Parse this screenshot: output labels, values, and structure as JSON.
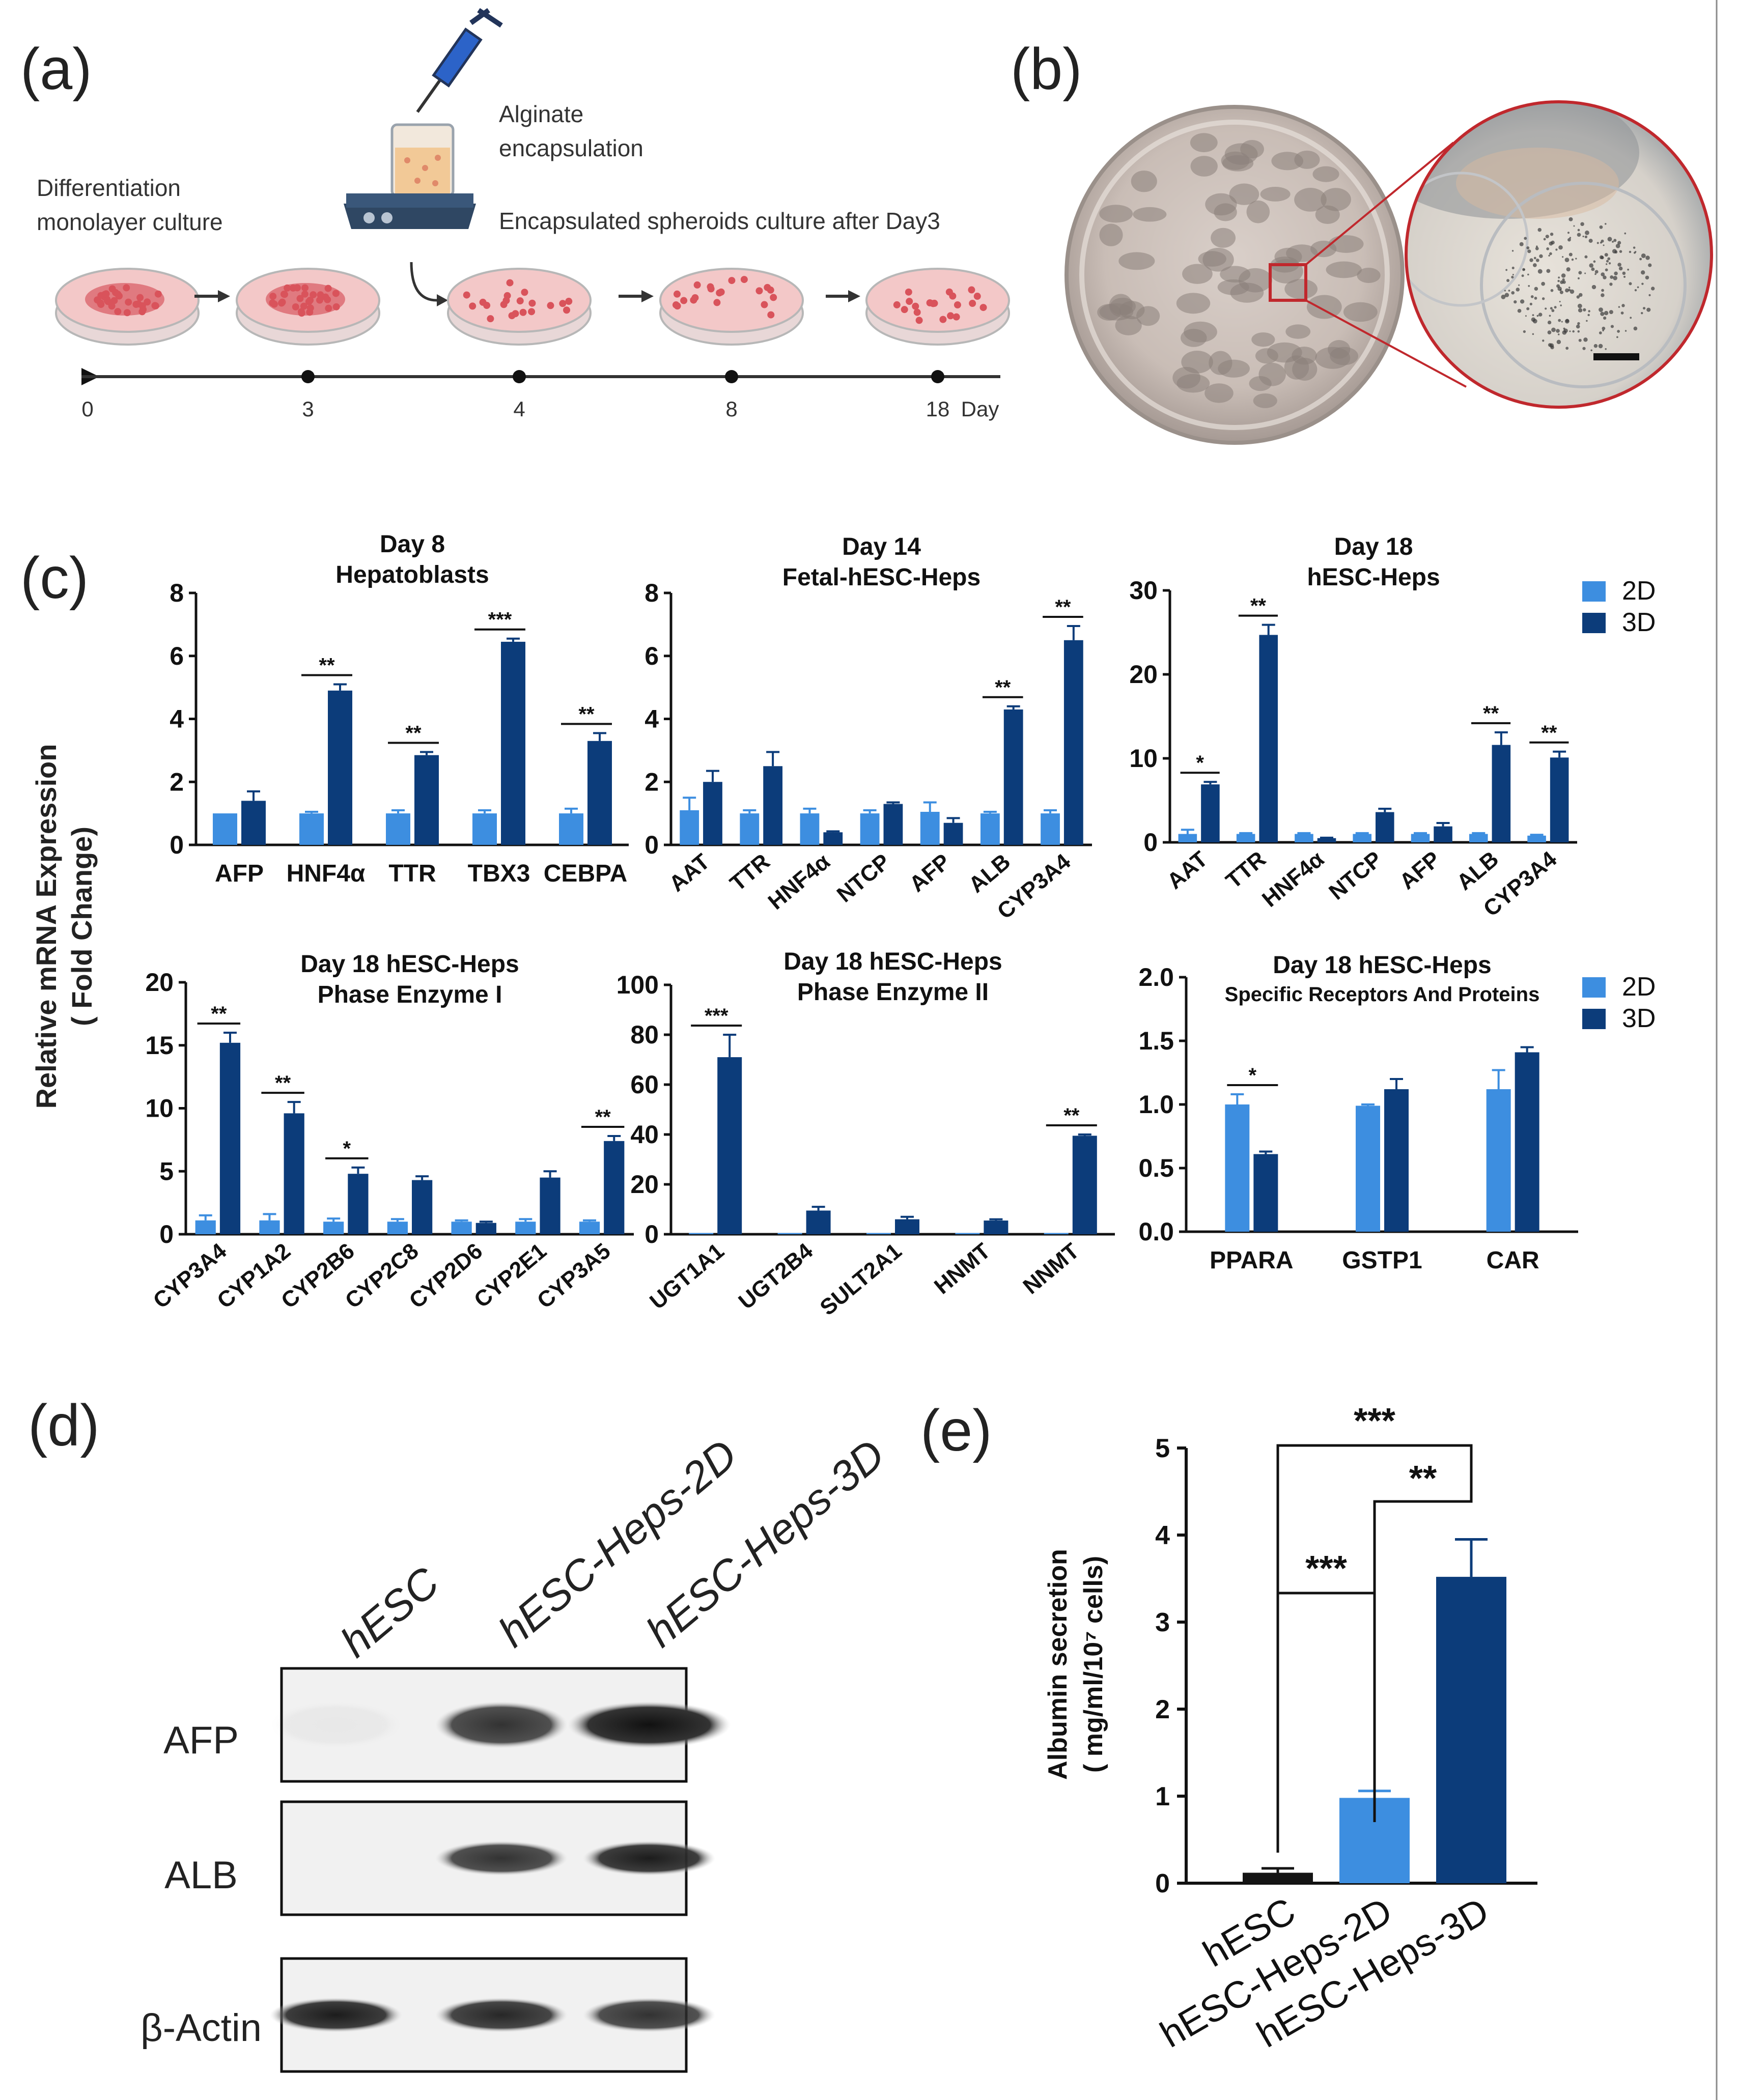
{
  "panel_letters": {
    "a": "(a)",
    "b": "(b)",
    "c": "(c)",
    "d": "(d)",
    "e": "(e)"
  },
  "colors": {
    "d2": "#3d8ee0",
    "d3": "#0c3c7a",
    "dish": "#f3c8c8",
    "dish_rim": "#b7b7b7",
    "cell": "#d9535b",
    "stirrer": "#2f4763",
    "scale_bar": "#111111"
  },
  "panel_a": {
    "label_mono": [
      "Differentiation",
      "monolayer culture"
    ],
    "label_alginate": [
      "Alginate",
      "encapsulation"
    ],
    "label_spheroids": "Encapsulated spheroids culture after Day3",
    "timeline": {
      "ticks": [
        "0",
        "3",
        "4",
        "8",
        "18"
      ],
      "unit": "Day"
    },
    "stages": [
      {
        "type": "monolayer",
        "day": "0"
      },
      {
        "type": "monolayer",
        "day": "3"
      },
      {
        "type": "spheroid",
        "day": "4"
      },
      {
        "type": "spheroid",
        "day": "8"
      },
      {
        "type": "spheroid",
        "day": "18"
      }
    ]
  },
  "panel_b": {
    "description_icon": "culture-plate-photo"
  },
  "panel_c": {
    "ylabel": [
      "Relative mRNA Expression",
      "( Fold Change)"
    ]
  },
  "panel_d": {
    "lanes": [
      "hESC",
      "hESC-Heps-2D",
      "hESC-Heps-3D"
    ],
    "blots": [
      {
        "label": "AFP",
        "intensity": [
          0.04,
          0.85,
          1.0
        ]
      },
      {
        "label": "ALB",
        "intensity": [
          0.0,
          0.85,
          0.95
        ]
      },
      {
        "label": "β-Actin",
        "intensity": [
          0.95,
          0.9,
          0.85
        ]
      }
    ]
  },
  "chart_data": [
    {
      "id": "c1",
      "type": "bar",
      "title": [
        "Day 8",
        "Hepatoblasts"
      ],
      "categories": [
        "AFP",
        "HNF4α",
        "TTR",
        "TBX3",
        "CEBPA"
      ],
      "series": [
        {
          "name": "2D",
          "values": [
            1,
            1,
            1,
            1,
            1
          ],
          "errors": [
            0,
            0.05,
            0.1,
            0.1,
            0.15
          ]
        },
        {
          "name": "3D",
          "values": [
            1.4,
            4.9,
            2.85,
            6.45,
            3.3
          ],
          "errors": [
            0.3,
            0.2,
            0.1,
            0.1,
            0.25
          ]
        }
      ],
      "ylim": [
        0,
        8
      ],
      "yticks": [
        0,
        2,
        4,
        6,
        8
      ],
      "rotate": false,
      "significance": [
        {
          "index": 1,
          "label": "**"
        },
        {
          "index": 2,
          "label": "**"
        },
        {
          "index": 3,
          "label": "***"
        },
        {
          "index": 4,
          "label": "**"
        }
      ]
    },
    {
      "id": "c2",
      "type": "bar",
      "title": [
        "Day 14",
        "Fetal-hESC-Heps"
      ],
      "categories": [
        "AAT",
        "TTR",
        "HNF4α",
        "NTCP",
        "AFP",
        "ALB",
        "CYP3A4"
      ],
      "series": [
        {
          "name": "2D",
          "values": [
            1.1,
            1,
            1,
            1,
            1.05,
            1,
            1
          ],
          "errors": [
            0.4,
            0.1,
            0.15,
            0.1,
            0.3,
            0.05,
            0.1
          ]
        },
        {
          "name": "3D",
          "values": [
            2,
            2.5,
            0.4,
            1.3,
            0.7,
            4.3,
            6.5
          ],
          "errors": [
            0.35,
            0.45,
            0.03,
            0.05,
            0.15,
            0.1,
            0.45
          ]
        }
      ],
      "ylim": [
        0,
        8
      ],
      "yticks": [
        0,
        2,
        4,
        6,
        8
      ],
      "rotate": true,
      "significance": [
        {
          "index": 5,
          "label": "**"
        },
        {
          "index": 6,
          "label": "**"
        }
      ]
    },
    {
      "id": "c3",
      "type": "bar",
      "title": [
        "Day 18",
        "hESC-Heps"
      ],
      "categories": [
        "AAT",
        "TTR",
        "HNF4α",
        "NTCP",
        "AFP",
        "ALB",
        "CYP3A4"
      ],
      "series": [
        {
          "name": "2D",
          "values": [
            1,
            1,
            1,
            1,
            1,
            1,
            0.8
          ],
          "errors": [
            0.5,
            0.1,
            0.1,
            0.1,
            0.1,
            0.1,
            0.1
          ]
        },
        {
          "name": "3D",
          "values": [
            6.9,
            24.7,
            0.5,
            3.6,
            1.9,
            11.6,
            10.1
          ],
          "errors": [
            0.3,
            1.2,
            0.05,
            0.4,
            0.4,
            1.5,
            0.7
          ]
        }
      ],
      "ylim": [
        0,
        30
      ],
      "yticks": [
        0,
        10,
        20,
        30
      ],
      "rotate": true,
      "significance": [
        {
          "index": 0,
          "label": "*"
        },
        {
          "index": 1,
          "label": "**"
        },
        {
          "index": 5,
          "label": "**"
        },
        {
          "index": 6,
          "label": "**"
        }
      ],
      "legend": [
        "2D",
        "3D"
      ]
    },
    {
      "id": "c4",
      "type": "bar",
      "title": [
        "Day 18  hESC-Heps",
        "Phase Enzyme I"
      ],
      "categories": [
        "CYP3A4",
        "CYP1A2",
        "CYP2B6",
        "CYP2C8",
        "CYP2D6",
        "CYP2E1",
        "CYP3A5"
      ],
      "series": [
        {
          "name": "2D",
          "values": [
            1.1,
            1.1,
            1,
            1,
            1,
            1,
            1
          ],
          "errors": [
            0.4,
            0.5,
            0.25,
            0.2,
            0.1,
            0.2,
            0.1
          ]
        },
        {
          "name": "3D",
          "values": [
            15.2,
            9.6,
            4.8,
            4.3,
            0.9,
            4.5,
            7.4
          ],
          "errors": [
            0.8,
            0.9,
            0.5,
            0.3,
            0.1,
            0.5,
            0.4
          ]
        }
      ],
      "ylim": [
        0,
        20
      ],
      "yticks": [
        0,
        5,
        10,
        15,
        20
      ],
      "rotate": true,
      "significance": [
        {
          "index": 0,
          "label": "**"
        },
        {
          "index": 1,
          "label": "**"
        },
        {
          "index": 2,
          "label": "*"
        },
        {
          "index": 6,
          "label": "**"
        }
      ]
    },
    {
      "id": "c5",
      "type": "bar",
      "title": [
        "Day 18 hESC-Heps",
        "Phase Enzyme II"
      ],
      "categories": [
        "UGT1A1",
        "UGT2B4",
        "SULT2A1",
        "HNMT",
        "NNMT"
      ],
      "series": [
        {
          "name": "2D",
          "values": [
            0.5,
            0.5,
            0.5,
            0.5,
            0.5
          ],
          "errors": [
            0,
            0,
            0,
            0,
            0
          ]
        },
        {
          "name": "3D",
          "values": [
            71,
            9.5,
            6,
            5.5,
            39.5
          ],
          "errors": [
            9,
            1.5,
            1,
            0.5,
            0.5
          ]
        }
      ],
      "ylim": [
        0,
        100
      ],
      "yticks": [
        0,
        20,
        40,
        60,
        80,
        100
      ],
      "rotate": true,
      "significance": [
        {
          "index": 0,
          "label": "***"
        },
        {
          "index": 4,
          "label": "**"
        }
      ]
    },
    {
      "id": "c6",
      "type": "bar",
      "title": [
        "Day 18 hESC-Heps",
        "Specific Receptors And Proteins"
      ],
      "categories": [
        "PPARA",
        "GSTP1",
        "CAR"
      ],
      "series": [
        {
          "name": "2D",
          "values": [
            1.0,
            0.99,
            1.12
          ],
          "errors": [
            0.08,
            0.01,
            0.15
          ]
        },
        {
          "name": "3D",
          "values": [
            0.61,
            1.12,
            1.41
          ],
          "errors": [
            0.02,
            0.08,
            0.04
          ]
        }
      ],
      "ylim": [
        0,
        2
      ],
      "yticks": [
        "0.0",
        "0.5",
        "1.0",
        "1.5",
        "2.0"
      ],
      "rotate": false,
      "significance": [
        {
          "index": 0,
          "label": "*"
        }
      ],
      "legend": [
        "2D",
        "3D"
      ]
    },
    {
      "id": "e",
      "type": "bar",
      "title": "",
      "ylabel": [
        "Albumin secretion",
        "( mg/ml/10⁷ cells)"
      ],
      "categories": [
        "hESC",
        "hESC-Heps-2D",
        "hESC-Heps-3D"
      ],
      "values": [
        0.12,
        0.98,
        3.52
      ],
      "errors": [
        0.05,
        0.08,
        0.43
      ],
      "ylim": [
        0,
        5
      ],
      "yticks": [
        0,
        1,
        2,
        3,
        4,
        5
      ],
      "comparisons": [
        {
          "from": 0,
          "to": 1,
          "label": "***"
        },
        {
          "from": 1,
          "to": 2,
          "label": "**"
        },
        {
          "from": 0,
          "to": 2,
          "label": "***"
        }
      ]
    }
  ]
}
